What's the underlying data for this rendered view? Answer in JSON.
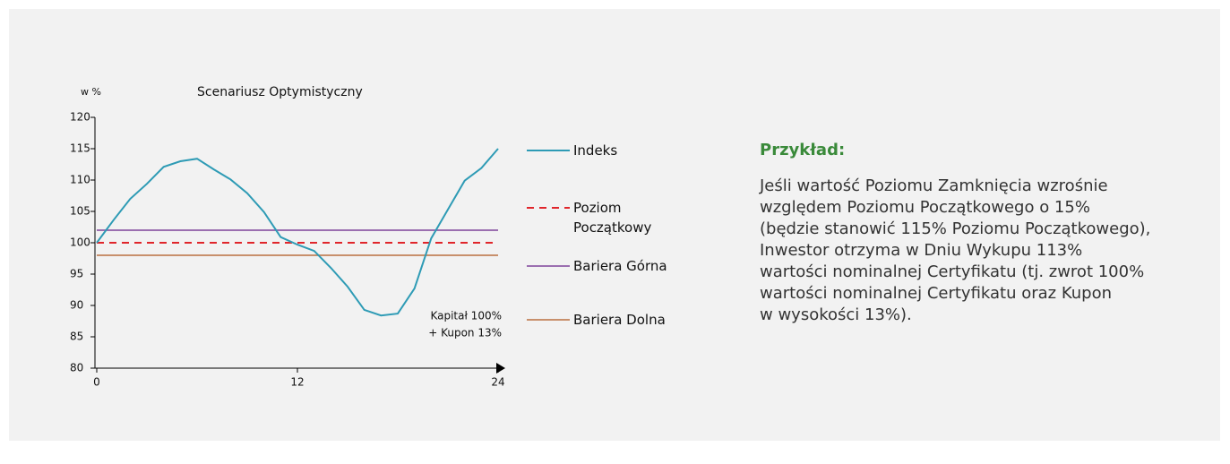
{
  "chart_data": {
    "type": "line",
    "title": "Scenariusz  Optymistyczny",
    "y_label": "w %",
    "xlim": [
      0,
      24
    ],
    "xticks": [
      0,
      12,
      24
    ],
    "ylim": [
      80,
      120
    ],
    "yticks": [
      80,
      85,
      90,
      95,
      100,
      105,
      110,
      115,
      120
    ],
    "annotation": [
      "Kapitał 100%",
      "+ Kupon 13%"
    ],
    "series": [
      {
        "name": "Indeks",
        "color": "#2e9bb5",
        "dashed": false,
        "x": [
          0,
          1,
          2,
          3,
          4,
          5,
          6,
          7,
          8,
          9,
          10,
          11,
          12,
          13,
          14,
          15,
          16,
          17,
          18,
          19,
          20,
          21,
          22,
          23,
          24
        ],
        "values": [
          100,
          103.6,
          107,
          109.4,
          112.1,
          113,
          113.4,
          111.7,
          110.1,
          107.9,
          104.9,
          100.9,
          99.7,
          98.7,
          96,
          93,
          89.3,
          88.4,
          88.7,
          92.7,
          100.7,
          105.3,
          109.9,
          111.9,
          115
        ]
      },
      {
        "name": "Poziom Początkowy",
        "color": "#e0262b",
        "dashed": true,
        "x": [
          0,
          24
        ],
        "values": [
          100,
          100
        ]
      },
      {
        "name": "Bariera Górna",
        "color": "#9b6fb0",
        "dashed": false,
        "x": [
          0,
          24
        ],
        "values": [
          102,
          102
        ]
      },
      {
        "name": "Bariera Dolna",
        "color": "#c8906c",
        "dashed": false,
        "x": [
          0,
          24
        ],
        "values": [
          98,
          98
        ]
      }
    ]
  },
  "example": {
    "heading": "Przykład:",
    "lines": [
      "Jeśli wartość Poziomu Zamknięcia wzrośnie",
      "względem Poziomu Początkowego o 15%",
      "(będzie stanowić 115% Poziomu Początkowego),",
      "Inwestor otrzyma w Dniu Wykupu 113%",
      "wartości nominalnej Certyfikatu (tj. zwrot 100%",
      "wartości nominalnej Certyfikatu oraz Kupon",
      "w wysokości 13%)."
    ]
  }
}
